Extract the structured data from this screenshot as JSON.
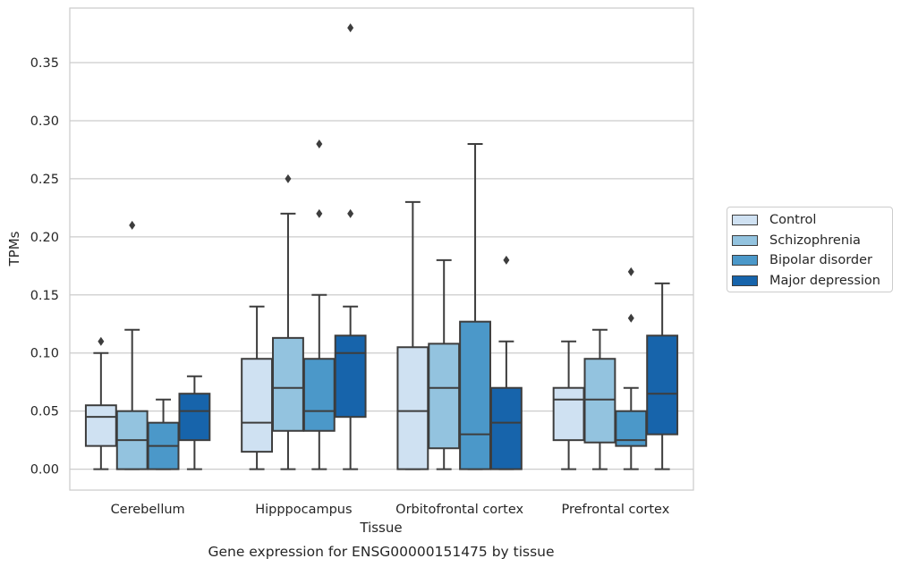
{
  "chart_data": {
    "type": "box",
    "title": "Gene expression for ENSG00000151475 by tissue",
    "xlabel": "Tissue",
    "ylabel": "TPMs",
    "ylim": [
      -0.018,
      0.397
    ],
    "yticks": [
      "0.00",
      "0.05",
      "0.10",
      "0.15",
      "0.20",
      "0.25",
      "0.30",
      "0.35"
    ],
    "categories": [
      "Cerebellum",
      "Hipppocampus",
      "Orbitofrontal cortex",
      "Prefrontal cortex"
    ],
    "grid": true,
    "legend_position": "right",
    "series": [
      {
        "name": "Control",
        "color": "#cfe1f2",
        "boxes": [
          {
            "whislo": 0.0,
            "q1": 0.02,
            "med": 0.045,
            "q3": 0.055,
            "whishi": 0.1,
            "fliers": [
              0.11
            ]
          },
          {
            "whislo": 0.0,
            "q1": 0.015,
            "med": 0.04,
            "q3": 0.095,
            "whishi": 0.14,
            "fliers": []
          },
          {
            "whislo": 0.0,
            "q1": 0.0,
            "med": 0.05,
            "q3": 0.105,
            "whishi": 0.23,
            "fliers": []
          },
          {
            "whislo": 0.0,
            "q1": 0.025,
            "med": 0.06,
            "q3": 0.07,
            "whishi": 0.11,
            "fliers": []
          }
        ]
      },
      {
        "name": "Schizophrenia",
        "color": "#93c3df",
        "boxes": [
          {
            "whislo": 0.0,
            "q1": 0.0,
            "med": 0.025,
            "q3": 0.05,
            "whishi": 0.12,
            "fliers": [
              0.21
            ]
          },
          {
            "whislo": 0.0,
            "q1": 0.033,
            "med": 0.07,
            "q3": 0.113,
            "whishi": 0.22,
            "fliers": [
              0.25
            ]
          },
          {
            "whislo": 0.0,
            "q1": 0.018,
            "med": 0.07,
            "q3": 0.108,
            "whishi": 0.18,
            "fliers": []
          },
          {
            "whislo": 0.0,
            "q1": 0.023,
            "med": 0.06,
            "q3": 0.095,
            "whishi": 0.12,
            "fliers": []
          }
        ]
      },
      {
        "name": "Bipolar disorder",
        "color": "#4b98c9",
        "boxes": [
          {
            "whislo": 0.0,
            "q1": 0.0,
            "med": 0.02,
            "q3": 0.04,
            "whishi": 0.06,
            "fliers": []
          },
          {
            "whislo": 0.0,
            "q1": 0.033,
            "med": 0.05,
            "q3": 0.095,
            "whishi": 0.15,
            "fliers": [
              0.22,
              0.28
            ]
          },
          {
            "whislo": 0.0,
            "q1": 0.0,
            "med": 0.03,
            "q3": 0.127,
            "whishi": 0.28,
            "fliers": []
          },
          {
            "whislo": 0.0,
            "q1": 0.02,
            "med": 0.025,
            "q3": 0.05,
            "whishi": 0.07,
            "fliers": [
              0.13,
              0.17
            ]
          }
        ]
      },
      {
        "name": "Major depression",
        "color": "#1764ab",
        "boxes": [
          {
            "whislo": 0.0,
            "q1": 0.025,
            "med": 0.05,
            "q3": 0.065,
            "whishi": 0.08,
            "fliers": []
          },
          {
            "whislo": 0.0,
            "q1": 0.045,
            "med": 0.1,
            "q3": 0.115,
            "whishi": 0.14,
            "fliers": [
              0.22,
              0.38
            ]
          },
          {
            "whislo": 0.0,
            "q1": 0.0,
            "med": 0.04,
            "q3": 0.07,
            "whishi": 0.11,
            "fliers": [
              0.18
            ]
          },
          {
            "whislo": 0.0,
            "q1": 0.03,
            "med": 0.065,
            "q3": 0.115,
            "whishi": 0.16,
            "fliers": []
          }
        ]
      }
    ]
  }
}
